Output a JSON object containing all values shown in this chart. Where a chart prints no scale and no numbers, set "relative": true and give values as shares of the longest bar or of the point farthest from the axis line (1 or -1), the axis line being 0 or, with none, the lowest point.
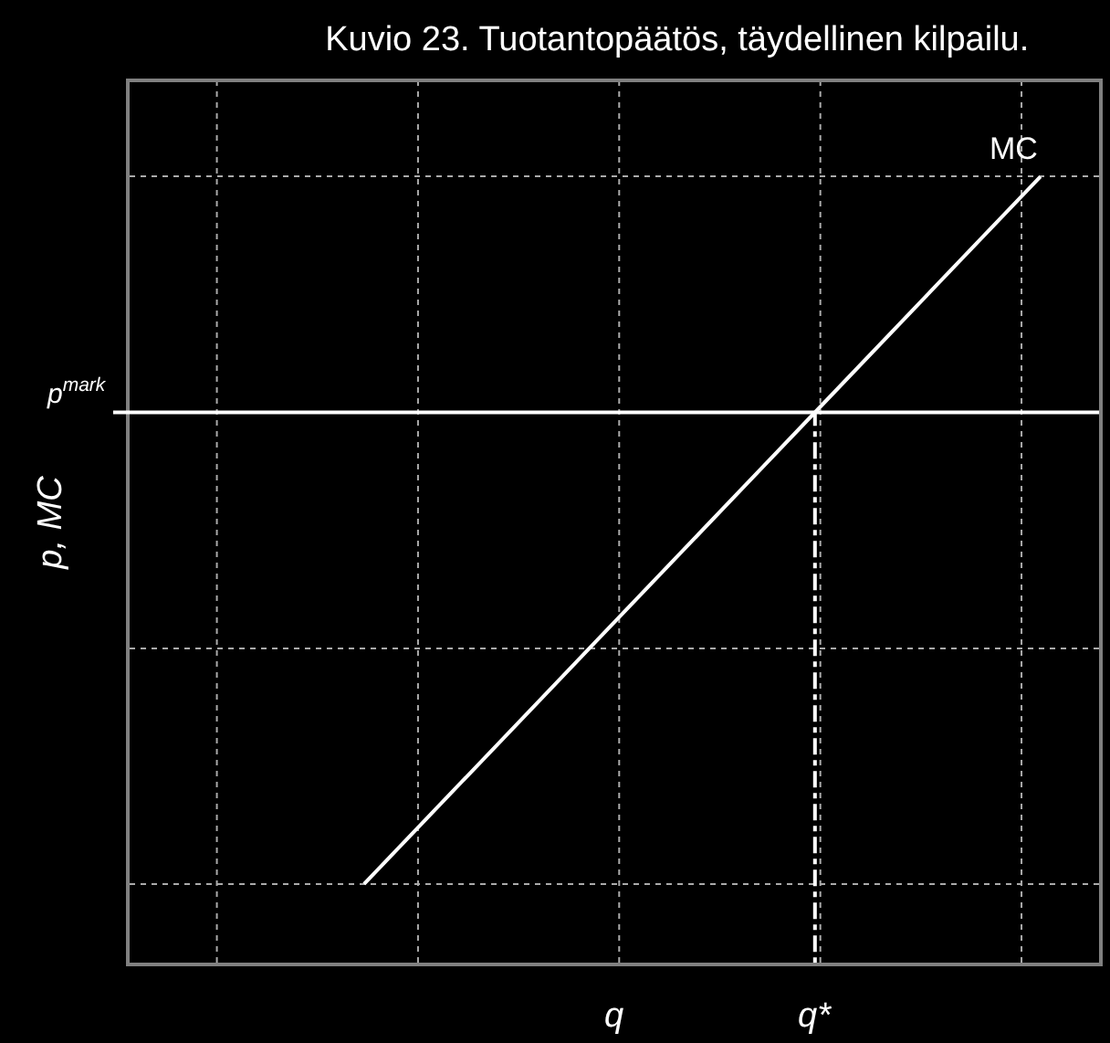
{
  "chart_data": {
    "type": "line",
    "title": "Kuvio 23. Tuotantopäätös, täydellinen kilpailu.",
    "xlabel": "q",
    "ylabel": "p, MC",
    "relative": true,
    "categories": [
      null,
      null,
      null,
      null
    ],
    "series": [
      {
        "name": "MC",
        "color": "#ffffff",
        "values": [
          0.1,
          0.4,
          0.7,
          1
        ]
      }
    ],
    "ref_lines": [
      {
        "axis": "y",
        "value": 0.7,
        "label": "p$^{mark}$",
        "color": "#ffffff",
        "line_style": "solid"
      }
    ],
    "annotations": [
      "q*"
    ],
    "grid": true,
    "legend": false,
    "marker": "none",
    "line_style": "solid"
  }
}
